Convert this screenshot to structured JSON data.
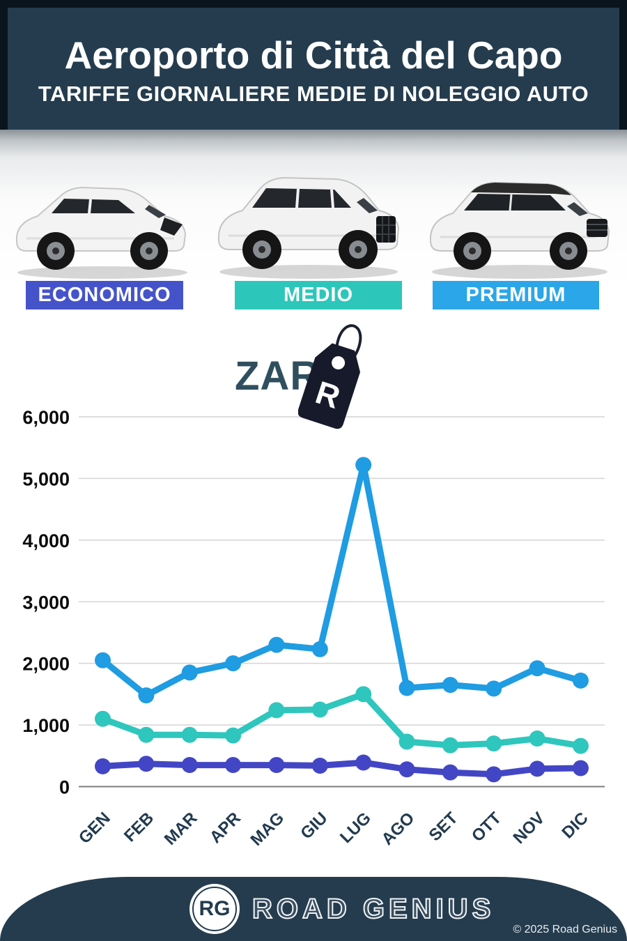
{
  "header": {
    "title": "Aeroporto di Città del Capo",
    "subtitle": "TARIFFE GIORNALIERE MEDIE DI NOLEGGIO AUTO"
  },
  "category_labels": [
    {
      "label": "ECONOMICO",
      "color": "#4553ca"
    },
    {
      "label": "MEDIO",
      "color": "#2cc7ba"
    },
    {
      "label": "PREMIUM",
      "color": "#2ba6e8"
    }
  ],
  "currency": {
    "code": "ZAR",
    "symbol": "R",
    "icon": "price-tag-icon"
  },
  "chart_data": {
    "type": "line",
    "categories": [
      "GEN",
      "FEB",
      "MAR",
      "APR",
      "MAG",
      "GIU",
      "LUG",
      "AGO",
      "SET",
      "OTT",
      "NOV",
      "DIC"
    ],
    "series": [
      {
        "name": "PREMIUM",
        "color": "#1f9ce2",
        "values": [
          2050,
          1480,
          1850,
          2000,
          2300,
          2230,
          5220,
          1600,
          1650,
          1590,
          1920,
          1720
        ]
      },
      {
        "name": "MEDIO",
        "color": "#2ec6bd",
        "values": [
          1100,
          840,
          840,
          830,
          1240,
          1250,
          1500,
          730,
          670,
          700,
          780,
          660
        ]
      },
      {
        "name": "ECONOMICO",
        "color": "#4346c4",
        "values": [
          330,
          370,
          350,
          350,
          350,
          340,
          390,
          280,
          230,
          200,
          290,
          300
        ]
      }
    ],
    "title": "",
    "xlabel": "",
    "ylabel": "",
    "yticks": [
      0,
      1000,
      2000,
      3000,
      4000,
      5000,
      6000
    ],
    "ylim": [
      0,
      6000
    ],
    "grid": true,
    "legend_position": "none",
    "tick_color": "#0b0b0b",
    "xtick_color": "#223a4e"
  },
  "footer": {
    "logo_initials": "RG",
    "brand": "ROAD GENIUS",
    "copyright": "© 2025 Road Genius"
  }
}
